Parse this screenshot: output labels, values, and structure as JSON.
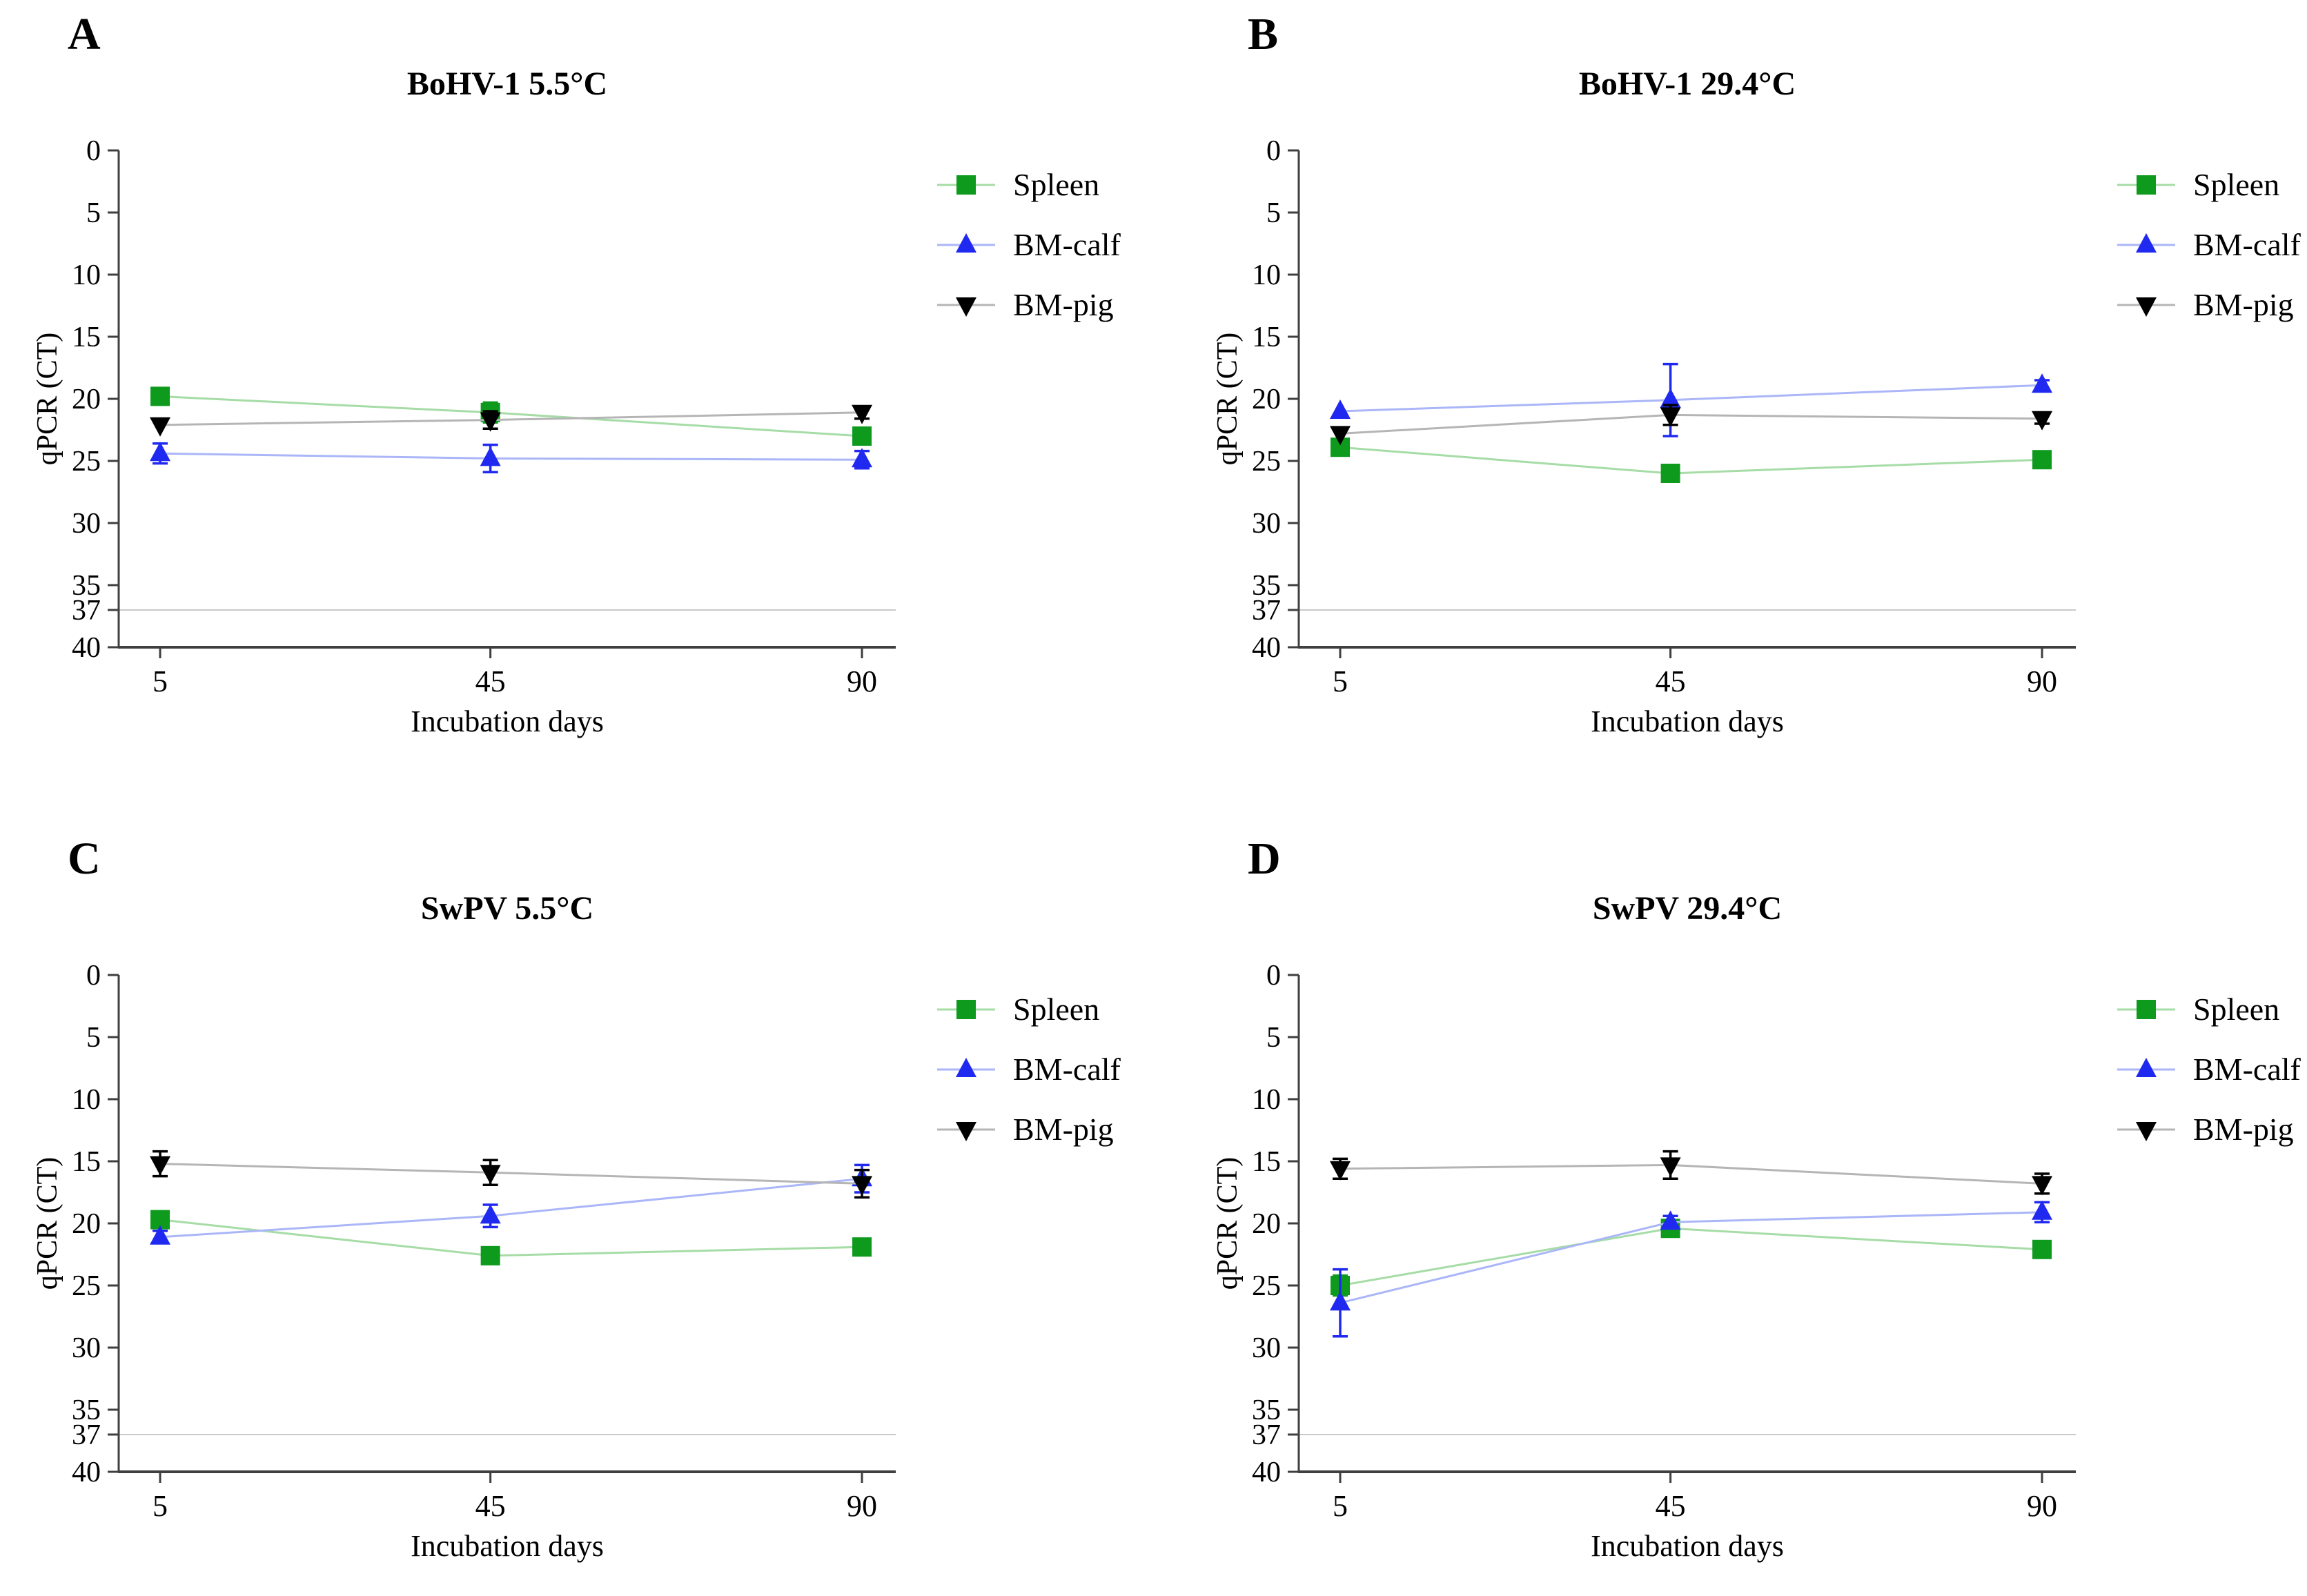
{
  "figure": {
    "background": "#ffffff",
    "xlabel": "Incubation days",
    "ylabel": "qPCR (CT)",
    "y_ticks": [
      0,
      5,
      10,
      15,
      20,
      25,
      30,
      35,
      37,
      40
    ],
    "x_ticks": [
      5,
      45,
      90
    ],
    "threshold_ct": 37
  },
  "colors": {
    "spleen_marker": "#0d9a1d",
    "spleen_line": "#a6dca6",
    "bm_calf_marker": "#2029f0",
    "bm_calf_line": "#aab6f8",
    "bm_pig_marker": "#000000",
    "bm_pig_line": "#b5b5b5",
    "axis": "#3f3f3f",
    "threshold_line": "#c9c9c9"
  },
  "legend": {
    "items": [
      "Spleen",
      "BM-calf",
      "BM-pig"
    ]
  },
  "chart_data": [
    {
      "type": "line",
      "letter": "A",
      "title": "BoHV-1 5.5°C",
      "x": [
        5,
        45,
        90
      ],
      "xlabel": "Incubation days",
      "ylabel": "qPCR (CT)",
      "ylim": [
        40,
        0
      ],
      "yticks": [
        0,
        5,
        10,
        15,
        20,
        25,
        30,
        35,
        37,
        40
      ],
      "threshold": 37,
      "legend_position": "right",
      "series": [
        {
          "name": "Spleen",
          "marker": "square",
          "color_key": "spleen",
          "values": [
            19.8,
            21.1,
            23.0
          ],
          "errors": [
            0.2,
            0.8,
            0.2
          ]
        },
        {
          "name": "BM-calf",
          "marker": "triangle-up",
          "color_key": "bm_calf",
          "values": [
            24.4,
            24.8,
            24.9
          ],
          "errors": [
            0.8,
            1.1,
            0.7
          ]
        },
        {
          "name": "BM-pig",
          "marker": "triangle-down",
          "color_key": "bm_pig",
          "values": [
            22.1,
            21.7,
            21.1
          ],
          "errors": [
            0.2,
            0.7,
            0.5
          ]
        }
      ]
    },
    {
      "type": "line",
      "letter": "B",
      "title": "BoHV-1 29.4°C",
      "x": [
        5,
        45,
        90
      ],
      "xlabel": "Incubation days",
      "ylabel": "qPCR (CT)",
      "ylim": [
        40,
        0
      ],
      "yticks": [
        0,
        5,
        10,
        15,
        20,
        25,
        30,
        35,
        37,
        40
      ],
      "threshold": 37,
      "legend_position": "right",
      "series": [
        {
          "name": "Spleen",
          "marker": "square",
          "color_key": "spleen",
          "values": [
            23.9,
            26.0,
            24.9
          ],
          "errors": [
            0.3,
            0.2,
            0.2
          ]
        },
        {
          "name": "BM-calf",
          "marker": "triangle-up",
          "color_key": "bm_calf",
          "values": [
            21.0,
            20.1,
            18.9
          ],
          "errors": [
            0.2,
            2.9,
            0.4
          ]
        },
        {
          "name": "BM-pig",
          "marker": "triangle-down",
          "color_key": "bm_pig",
          "values": [
            22.8,
            21.3,
            21.6
          ],
          "errors": [
            0.2,
            0.8,
            0.4
          ]
        }
      ]
    },
    {
      "type": "line",
      "letter": "C",
      "title": "SwPV 5.5°C",
      "x": [
        5,
        45,
        90
      ],
      "xlabel": "Incubation days",
      "ylabel": "qPCR (CT)",
      "ylim": [
        40,
        0
      ],
      "yticks": [
        0,
        5,
        10,
        15,
        20,
        25,
        30,
        35,
        37,
        40
      ],
      "threshold": 37,
      "legend_position": "right",
      "series": [
        {
          "name": "Spleen",
          "marker": "square",
          "color_key": "spleen",
          "values": [
            19.7,
            22.6,
            21.9
          ],
          "errors": [
            0.6,
            0.6,
            0.3
          ]
        },
        {
          "name": "BM-calf",
          "marker": "triangle-up",
          "color_key": "bm_calf",
          "values": [
            21.1,
            19.4,
            16.4
          ],
          "errors": [
            0.5,
            0.9,
            1.1
          ]
        },
        {
          "name": "BM-pig",
          "marker": "triangle-down",
          "color_key": "bm_pig",
          "values": [
            15.2,
            15.9,
            16.8
          ],
          "errors": [
            1.0,
            1.0,
            1.1
          ]
        }
      ]
    },
    {
      "type": "line",
      "letter": "D",
      "title": "SwPV 29.4°C",
      "x": [
        5,
        45,
        90
      ],
      "xlabel": "Incubation days",
      "ylabel": "qPCR (CT)",
      "ylim": [
        40,
        0
      ],
      "yticks": [
        0,
        5,
        10,
        15,
        20,
        25,
        30,
        35,
        37,
        40
      ],
      "threshold": 37,
      "legend_position": "right",
      "series": [
        {
          "name": "Spleen",
          "marker": "square",
          "color_key": "spleen",
          "values": [
            25.0,
            20.4,
            22.1
          ],
          "errors": [
            0.8,
            0.3,
            0.3
          ]
        },
        {
          "name": "BM-calf",
          "marker": "triangle-up",
          "color_key": "bm_calf",
          "values": [
            26.4,
            19.9,
            19.1
          ],
          "errors": [
            2.7,
            0.5,
            0.8
          ]
        },
        {
          "name": "BM-pig",
          "marker": "triangle-down",
          "color_key": "bm_pig",
          "values": [
            15.6,
            15.3,
            16.8
          ],
          "errors": [
            0.8,
            1.1,
            0.8
          ]
        }
      ]
    }
  ]
}
